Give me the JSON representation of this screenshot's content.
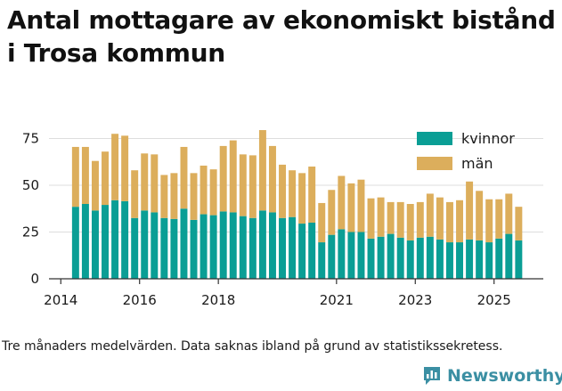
{
  "title": {
    "line1": "Antal mottagare av ekonomiskt bistånd",
    "line2": "i Trosa kommun"
  },
  "footnote": "Tre månaders medelvärden. Data saknas ibland på grund av statistikssekretess.",
  "brand": {
    "name": "Newsworthy",
    "icon": "newsworthy-logo-icon",
    "color": "#3b8fa3"
  },
  "colors": {
    "kvinnor": "#0a9e95",
    "man": "#dcae5c",
    "grid": "#dddddd"
  },
  "chart_data": {
    "type": "bar",
    "stacked": true,
    "title": "Antal mottagare av ekonomiskt bistånd i Trosa kommun",
    "xlabel": "",
    "ylabel": "",
    "ylim": [
      0,
      80
    ],
    "yticks": [
      0,
      25,
      50,
      75
    ],
    "xlim": [
      2013.7,
      2026.25
    ],
    "xticks": [
      2014,
      2016,
      2018,
      2021,
      2023,
      2025
    ],
    "legend_position": "top-right",
    "x": [
      2014.375,
      2014.625,
      2014.875,
      2015.125,
      2015.375,
      2015.625,
      2015.875,
      2016.125,
      2016.375,
      2016.625,
      2016.875,
      2017.125,
      2017.375,
      2017.625,
      2017.875,
      2018.125,
      2018.375,
      2018.625,
      2018.875,
      2019.125,
      2019.375,
      2019.625,
      2019.875,
      2020.125,
      2020.375,
      2020.625,
      2020.875,
      2021.125,
      2021.375,
      2021.625,
      2021.875,
      2022.125,
      2022.375,
      2022.625,
      2022.875,
      2023.125,
      2023.375,
      2023.625,
      2023.875,
      2024.125,
      2024.375,
      2024.625,
      2024.875,
      2025.125,
      2025.375,
      2025.625
    ],
    "series": [
      {
        "name": "kvinnor",
        "color": "#0a9e95",
        "values": [
          38.5,
          40,
          36.5,
          39.5,
          42,
          41.5,
          32.5,
          36.5,
          35.5,
          32.5,
          32,
          37.5,
          31.5,
          34.5,
          34,
          36,
          35.5,
          33.5,
          32.5,
          36.5,
          35.5,
          32.5,
          33,
          29.5,
          30,
          19.5,
          23.5,
          26.5,
          25,
          25,
          21.5,
          22.5,
          24,
          22,
          20.5,
          22,
          22.5,
          21,
          19.5,
          19.5,
          21,
          20.5,
          19.5,
          21.5,
          24,
          20.5
        ]
      },
      {
        "name": "män",
        "color": "#dcae5c",
        "values": [
          32,
          30.5,
          26.5,
          28.5,
          35.5,
          35,
          25.5,
          30.5,
          31,
          23,
          24.5,
          33,
          25,
          26,
          24.5,
          35,
          38.5,
          33,
          33.5,
          43,
          35.5,
          28.5,
          25,
          27,
          30,
          21,
          24,
          28.5,
          26,
          28,
          21.5,
          21,
          17,
          19,
          19.5,
          19,
          23,
          22.5,
          21.5,
          22.5,
          31,
          26.5,
          23,
          21,
          21.5,
          18
        ]
      }
    ]
  }
}
